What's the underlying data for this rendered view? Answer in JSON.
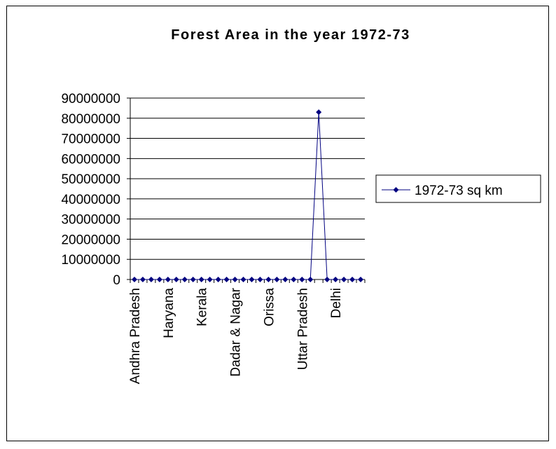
{
  "chart_data": {
    "type": "line",
    "title": "Forest Area in the year 1972-73",
    "xlabel": "",
    "ylabel": "",
    "ylim": [
      0,
      90000000
    ],
    "yticks": [
      0,
      10000000,
      20000000,
      30000000,
      40000000,
      50000000,
      60000000,
      70000000,
      80000000,
      90000000
    ],
    "grid": true,
    "legend_position": "right",
    "point_count": 28,
    "visible_category_labels": [
      {
        "index": 0,
        "label": "Andhra Pradesh"
      },
      {
        "index": 4,
        "label": "Haryana"
      },
      {
        "index": 8,
        "label": "Kerala"
      },
      {
        "index": 12,
        "label": "Dadar & Nagar"
      },
      {
        "index": 16,
        "label": "Orissa"
      },
      {
        "index": 20,
        "label": "Uttar Pradesh"
      },
      {
        "index": 24,
        "label": "Delhi"
      }
    ],
    "series": [
      {
        "name": "1972-73 sq km",
        "color": "#000080",
        "values": [
          0,
          0,
          0,
          0,
          0,
          0,
          0,
          0,
          0,
          0,
          0,
          0,
          0,
          0,
          0,
          0,
          0,
          0,
          0,
          0,
          0,
          0,
          83000000,
          0,
          0,
          0,
          0,
          0
        ]
      }
    ]
  }
}
